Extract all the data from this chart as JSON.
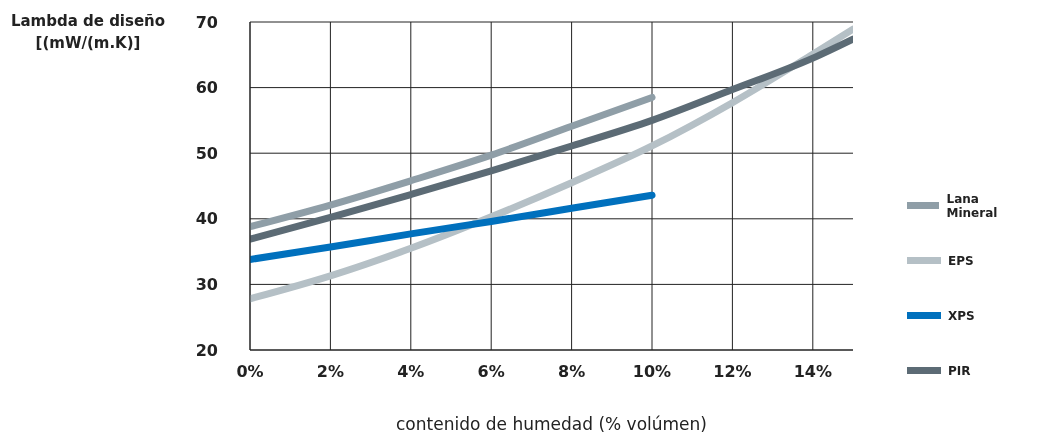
{
  "chart_data": {
    "type": "line",
    "ylabel": "Lambda de diseño [(mW/(m.K)]",
    "xlabel": "contenido de humedad (% volúmen)",
    "xlim": [
      0,
      15
    ],
    "xticks": [
      {
        "value": 0,
        "label": "0%"
      },
      {
        "value": 2,
        "label": "2%"
      },
      {
        "value": 4,
        "label": "4%"
      },
      {
        "value": 6,
        "label": "6%"
      },
      {
        "value": 8,
        "label": "8%"
      },
      {
        "value": 10,
        "label": "10%"
      },
      {
        "value": 12,
        "label": "12%"
      },
      {
        "value": 14,
        "label": "14%"
      }
    ],
    "ylim": [
      20,
      70
    ],
    "yticks": [
      20,
      30,
      40,
      50,
      60,
      70
    ],
    "grid": true,
    "legend": "right",
    "marker": "none",
    "line_style": "solid",
    "series": [
      {
        "name": "Lana Mineral",
        "color": "#8f9ea7",
        "x": [
          0,
          2,
          4,
          6,
          8,
          10
        ],
        "values": [
          38.8,
          42.1,
          45.8,
          49.7,
          54.1,
          58.5
        ]
      },
      {
        "name": "EPS",
        "color": "#b5c0c6",
        "x": [
          0,
          2,
          4,
          6,
          8,
          10,
          12,
          14,
          15
        ],
        "values": [
          27.8,
          31.3,
          35.5,
          40.3,
          45.5,
          51.1,
          57.7,
          65.1,
          68.9
        ]
      },
      {
        "name": "XPS",
        "color": "#0070bd",
        "x": [
          0,
          2,
          4,
          6,
          8,
          10
        ],
        "values": [
          33.8,
          35.7,
          37.7,
          39.6,
          41.6,
          43.6
        ]
      },
      {
        "name": "PIR",
        "color": "#5c6b75",
        "x": [
          0,
          2,
          4,
          6,
          8,
          10,
          12,
          14,
          15
        ],
        "values": [
          36.9,
          40.2,
          43.7,
          47.3,
          51.1,
          55.0,
          59.7,
          64.5,
          67.4
        ]
      }
    ]
  }
}
